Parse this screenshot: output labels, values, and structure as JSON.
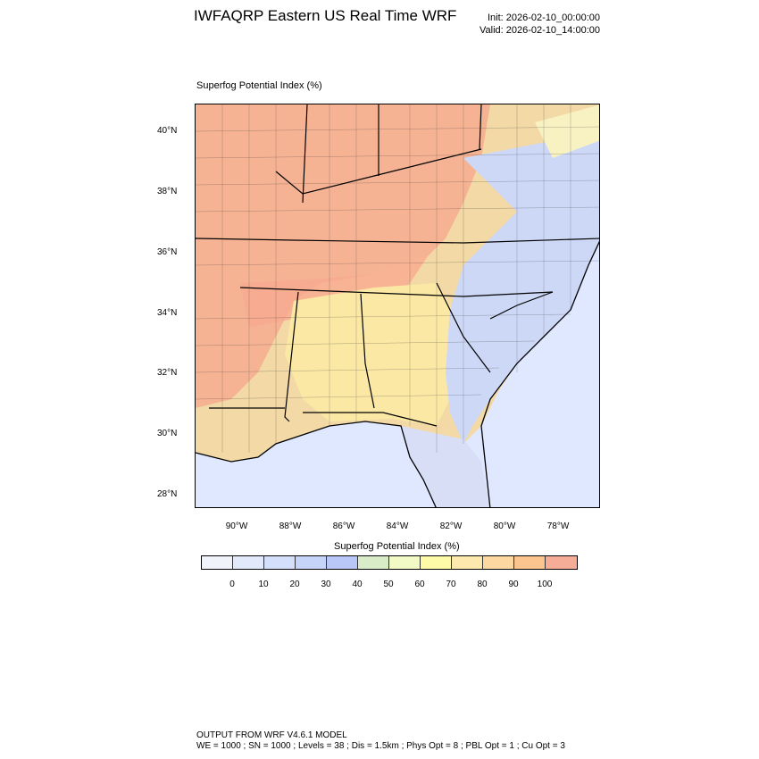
{
  "header": {
    "title": "IWFAQRP Eastern US Real Time WRF",
    "init": "Init: 2026-02-10_00:00:00",
    "valid": "Valid: 2026-02-10_14:00:00"
  },
  "plot": {
    "label": "Superfog Potential Index   (%)",
    "lat_ticks": [
      "40°N",
      "38°N",
      "36°N",
      "34°N",
      "32°N",
      "30°N",
      "28°N"
    ],
    "lon_ticks": [
      "90°W",
      "88°W",
      "86°W",
      "84°W",
      "82°W",
      "80°W",
      "78°W"
    ]
  },
  "colorbar": {
    "title": "Superfog Potential Index  (%)",
    "labels": [
      "0",
      "10",
      "20",
      "30",
      "40",
      "50",
      "60",
      "70",
      "80",
      "90",
      "100"
    ],
    "colors": [
      "#f0f4fa",
      "#e2e9fb",
      "#d3dffb",
      "#c6d4fa",
      "#b8c7f7",
      "#d8ecc8",
      "#f2fac6",
      "#fdfaa8",
      "#fde9ad",
      "#fdd9a1",
      "#fcc590",
      "#f6ad97"
    ]
  },
  "footer": {
    "line1": "OUTPUT FROM WRF V4.6.1 MODEL",
    "line2": "WE = 1000 ; SN = 1000 ; Levels = 38 ; Dis = 1.5km ; Phys Opt = 8 ; PBL Opt = 1 ; Cu Opt = 3"
  }
}
